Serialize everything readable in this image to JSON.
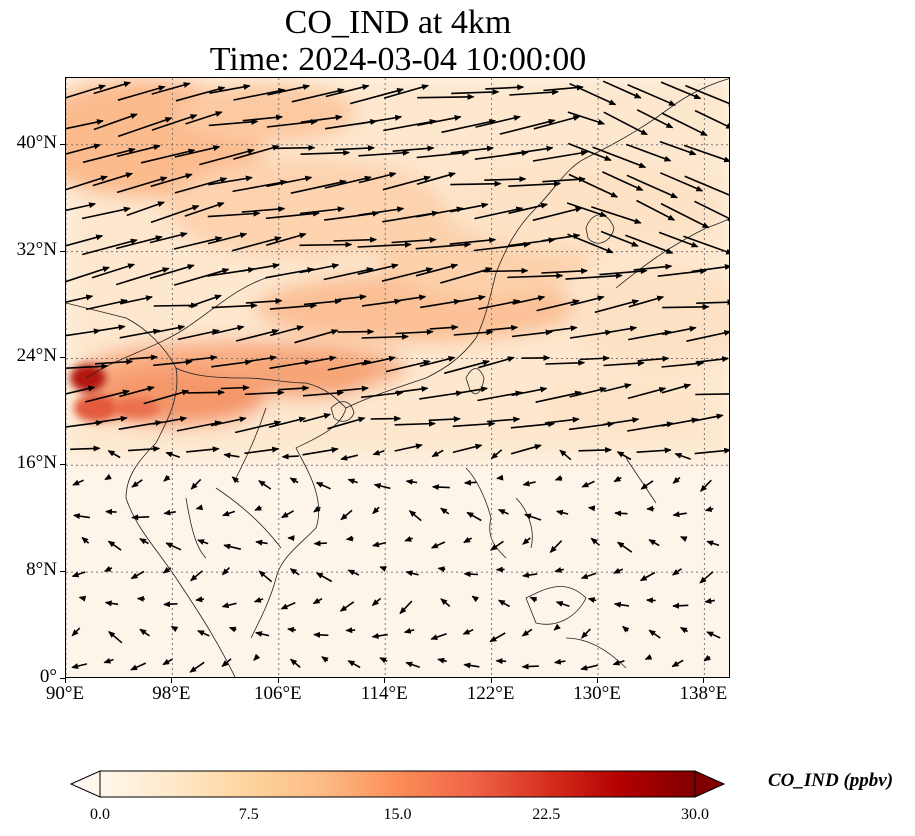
{
  "title": {
    "line1": "CO_IND at 4km",
    "line2": "Time: 2024-03-04 10:00:00"
  },
  "map": {
    "extent": {
      "lon_min": 90,
      "lon_max": 140,
      "lat_min": 0,
      "lat_max": 45
    },
    "lon_ticks": [
      "90°E",
      "98°E",
      "106°E",
      "114°E",
      "122°E",
      "130°E",
      "138°E"
    ],
    "lon_tick_values": [
      90,
      98,
      106,
      114,
      122,
      130,
      138
    ],
    "lat_ticks": [
      "0°",
      "8°N",
      "16°N",
      "24°N",
      "32°N",
      "40°N"
    ],
    "lat_tick_values": [
      0,
      8,
      16,
      24,
      32,
      40
    ],
    "gridlines": true,
    "field": "CO_IND",
    "overlay": "wind vectors"
  },
  "colorbar": {
    "label": "CO_IND (ppbv)",
    "min": 0.0,
    "max": 30.0,
    "ticks": [
      "0.0",
      "7.5",
      "15.0",
      "22.5",
      "30.0"
    ],
    "tick_values": [
      0,
      7.5,
      15,
      22.5,
      30
    ],
    "extend": "both",
    "colormap": "OrRd",
    "colors": [
      "#fff7ec",
      "#fee8c8",
      "#fdd49e",
      "#fdbb84",
      "#fc8d59",
      "#ef6548",
      "#d7301f",
      "#b30000",
      "#7f0000"
    ]
  }
}
